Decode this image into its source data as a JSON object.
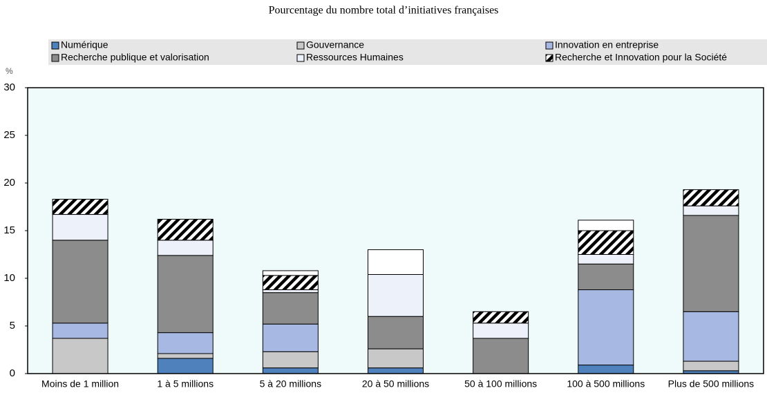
{
  "chart_data": {
    "type": "stacked_bar",
    "title": "Pourcentage du nombre total d’initiatives françaises",
    "ylabel": "%",
    "categories": [
      "Moins de 1 million",
      "1 à 5 millions",
      "5 à 20 millions",
      "20 à 50 millions",
      "50 à 100 millions",
      "100 à 500 millions",
      "Plus de 500 millions"
    ],
    "series": [
      {
        "name": "Numérique",
        "color": "#4f81bd",
        "values": [
          0,
          1.6,
          0.6,
          0.6,
          0,
          0.9,
          0.3
        ]
      },
      {
        "name": "Gouvernance",
        "color": "#c8c8c8",
        "values": [
          3.7,
          0.5,
          1.7,
          2.0,
          0,
          0,
          1.0
        ]
      },
      {
        "name": "Innovation en entreprise",
        "color": "#a7b9e3",
        "values": [
          1.6,
          2.2,
          2.9,
          0,
          0,
          7.9,
          5.2
        ]
      },
      {
        "name": "Recherche publique et valorisation",
        "color": "#8c8c8c",
        "values": [
          8.7,
          8.1,
          3.3,
          3.4,
          3.7,
          2.7,
          10.1
        ]
      },
      {
        "name": "Ressources Humaines",
        "color": "#edf1fa",
        "values": [
          2.7,
          1.6,
          0.3,
          4.4,
          1.6,
          1.0,
          1.0
        ]
      },
      {
        "name": "Recherche et Innovation pour la Société",
        "color": "#ffffff",
        "hatch": true,
        "values": [
          1.6,
          2.2,
          1.5,
          0,
          1.2,
          2.5,
          1.7
        ]
      },
      {
        "color": "#ffffff",
        "values": [
          0,
          0,
          0.5,
          2.6,
          0,
          1.1,
          0
        ]
      }
    ],
    "ylim": [
      0,
      30
    ],
    "yticks": [
      0,
      5,
      10,
      15,
      20,
      25,
      30
    ],
    "grid": false,
    "legend": "top"
  }
}
